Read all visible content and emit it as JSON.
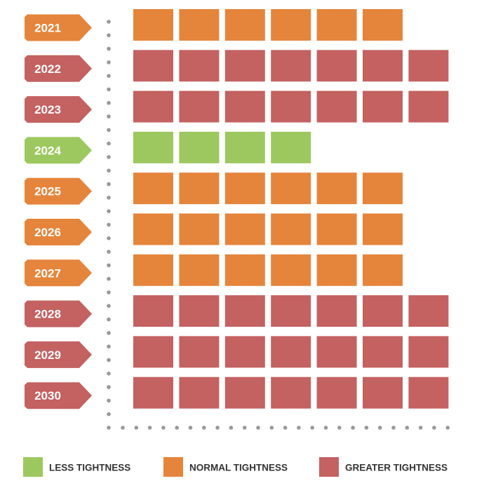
{
  "chart_data": {
    "type": "bar",
    "title": "",
    "xlabel": "",
    "ylabel": "",
    "grid": false,
    "legend_position": "bottom",
    "categories": [
      "2021",
      "2022",
      "2023",
      "2024",
      "2025",
      "2026",
      "2027",
      "2028",
      "2029",
      "2030"
    ],
    "values": [
      6,
      7,
      7,
      4,
      6,
      6,
      6,
      7,
      7,
      7
    ],
    "levels": [
      "normal",
      "greater",
      "greater",
      "less",
      "normal",
      "normal",
      "normal",
      "greater",
      "greater",
      "greater"
    ],
    "legend": [
      {
        "key": "less",
        "label": "LESS TIGHTNESS",
        "color": "#9dc85f"
      },
      {
        "key": "normal",
        "label": "NORMAL TIGHTNESS",
        "color": "#e5853b"
      },
      {
        "key": "greater",
        "label": "GREATER TIGHTNESS",
        "color": "#c46161"
      }
    ]
  }
}
